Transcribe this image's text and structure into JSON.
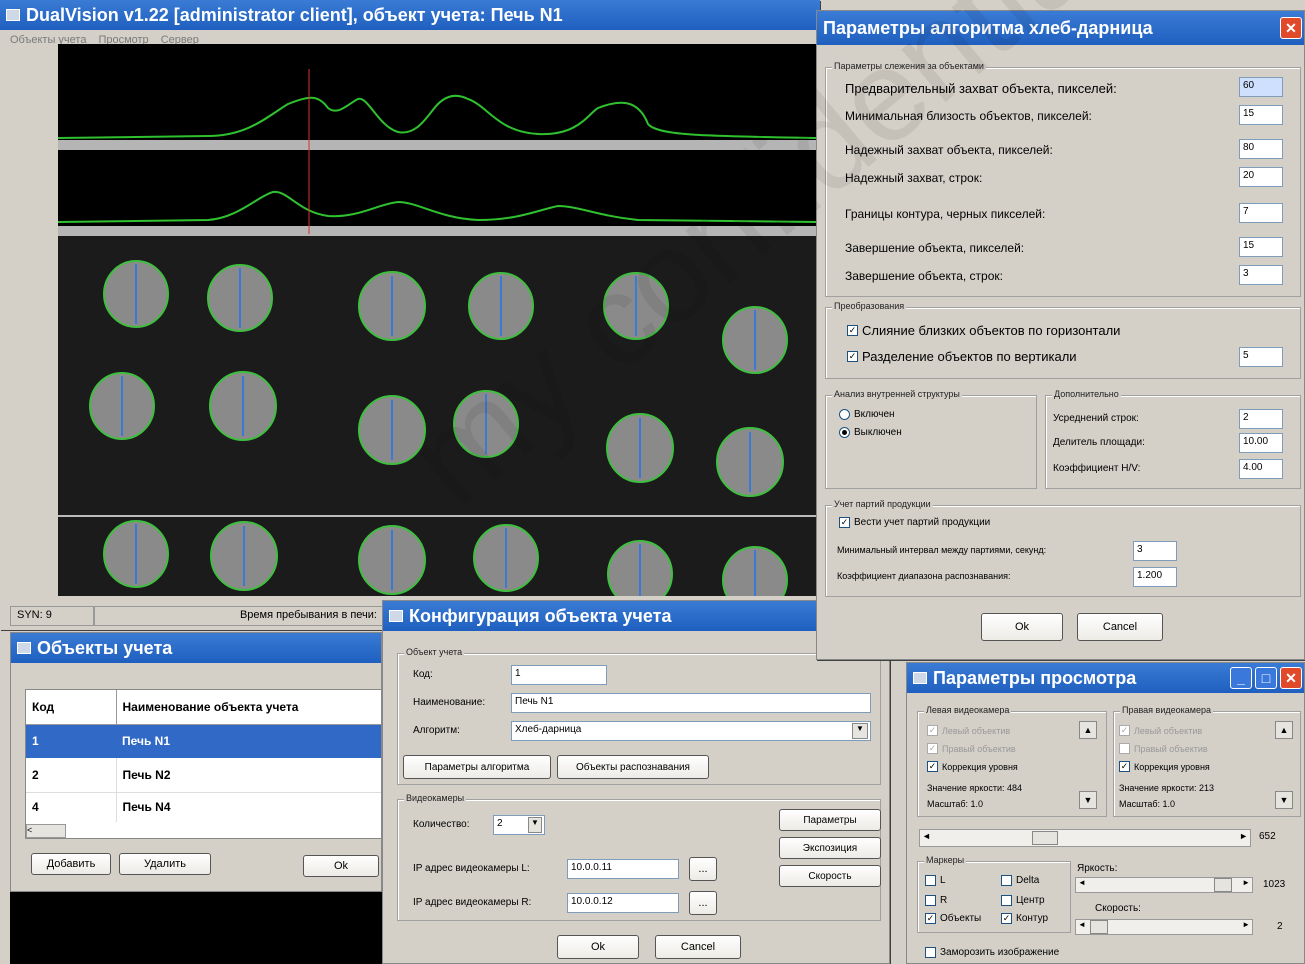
{
  "main": {
    "title": "DualVision v1.22 [administrator client], объект учета: Печь N1",
    "menu": [
      "Объекты учета",
      "Просмотр",
      "Сервер"
    ],
    "status": {
      "syn": "SYN: 9",
      "time_label": "Время пребывания в печи:"
    }
  },
  "objects_window": {
    "title": "Объекты учета",
    "columns": [
      "Код",
      "Наименование объекта учета"
    ],
    "rows": [
      {
        "code": "1",
        "name": "Печь N1"
      },
      {
        "code": "2",
        "name": "Печь N2"
      },
      {
        "code": "4",
        "name": "Печь N4"
      }
    ],
    "buttons": {
      "add": "Добавить",
      "delete": "Удалить",
      "ok": "Ok"
    }
  },
  "config_window": {
    "title": "Конфигурация объекта учета",
    "group_object": "Объект учета",
    "code_label": "Код:",
    "code_value": "1",
    "name_label": "Наименование:",
    "name_value": "Печь N1",
    "algo_label": "Алгоритм:",
    "algo_value": "Хлеб-дарница",
    "btn_algo_params": "Параметры алгоритма",
    "btn_recognized": "Объекты распознавания",
    "group_cameras": "Видеокамеры",
    "count_label": "Количество:",
    "count_value": "2",
    "ip_l_label": "IP адрес видеокамеры L:",
    "ip_l_value": "10.0.0.11",
    "ip_r_label": "IP адрес видеокамеры R:",
    "ip_r_value": "10.0.0.12",
    "btn_params": "Параметры",
    "btn_exposure": "Экспозиция",
    "btn_speed": "Скорость",
    "ok": "Ok",
    "cancel": "Cancel"
  },
  "algo_window": {
    "title": "Параметры алгоритма хлеб-дарница",
    "group_tracking": "Параметры слежения за объектами",
    "tracking": [
      {
        "label": "Предварительный захват объекта, пикселей:",
        "value": "60"
      },
      {
        "label": "Минимальная близость объектов, пикселей:",
        "value": "15"
      },
      {
        "label": "Надежный захват объекта, пикселей:",
        "value": "80"
      },
      {
        "label": "Надежный захват, строк:",
        "value": "20"
      },
      {
        "label": "Границы контура, черных пикселей:",
        "value": "7"
      },
      {
        "label": "Завершение объекта, пикселей:",
        "value": "15"
      },
      {
        "label": "Завершение объекта, строк:",
        "value": "3"
      }
    ],
    "group_transform": "Преобразования",
    "merge_label": "Слияние близких объектов по горизонтали",
    "split_label": "Разделение объектов по вертикали",
    "split_value": "5",
    "group_internal": "Анализ внутренней структуры",
    "radio_on": "Включен",
    "radio_off": "Выключен",
    "group_extra": "Дополнительно",
    "extra": [
      {
        "label": "Усреднений строк:",
        "value": "2"
      },
      {
        "label": "Делитель площади:",
        "value": "10.00"
      },
      {
        "label": "Коэффициент H/V:",
        "value": "4.00"
      }
    ],
    "group_batches": "Учет партий продукции",
    "batches_check": "Вести учет партий продукции",
    "min_interval_label": "Минимальный интервал между партиями, секунд:",
    "min_interval_value": "3",
    "range_coef_label": "Коэффициент диапазона распознавания:",
    "range_coef_value": "1.200",
    "ok": "Ok",
    "cancel": "Cancel"
  },
  "view_window": {
    "title": "Параметры просмотра",
    "left_cam": "Левая видеокамера",
    "right_cam": "Правая видеокамера",
    "left_items": [
      "Левый объектив",
      "Правый объектив",
      "Коррекция уровня"
    ],
    "right_items": [
      "Левый объектив",
      "Правый объектив",
      "Коррекция уровня"
    ],
    "left_brightness": "Значение яркости: 484",
    "right_brightness": "Значение яркости: 213",
    "left_scale": "Масштаб: 1.0",
    "right_scale": "Масштаб: 1.0",
    "hscroll_value": "652",
    "group_markers": "Маркеры",
    "markers": [
      "L",
      "Delta",
      "R",
      "Центр",
      "Объекты",
      "Контур"
    ],
    "brightness_label": "Яркость:",
    "brightness_value": "1023",
    "speed_label": "Скорость:",
    "speed_value": "2",
    "freeze_label": "Заморозить изображение"
  },
  "watermark": "my confidential"
}
